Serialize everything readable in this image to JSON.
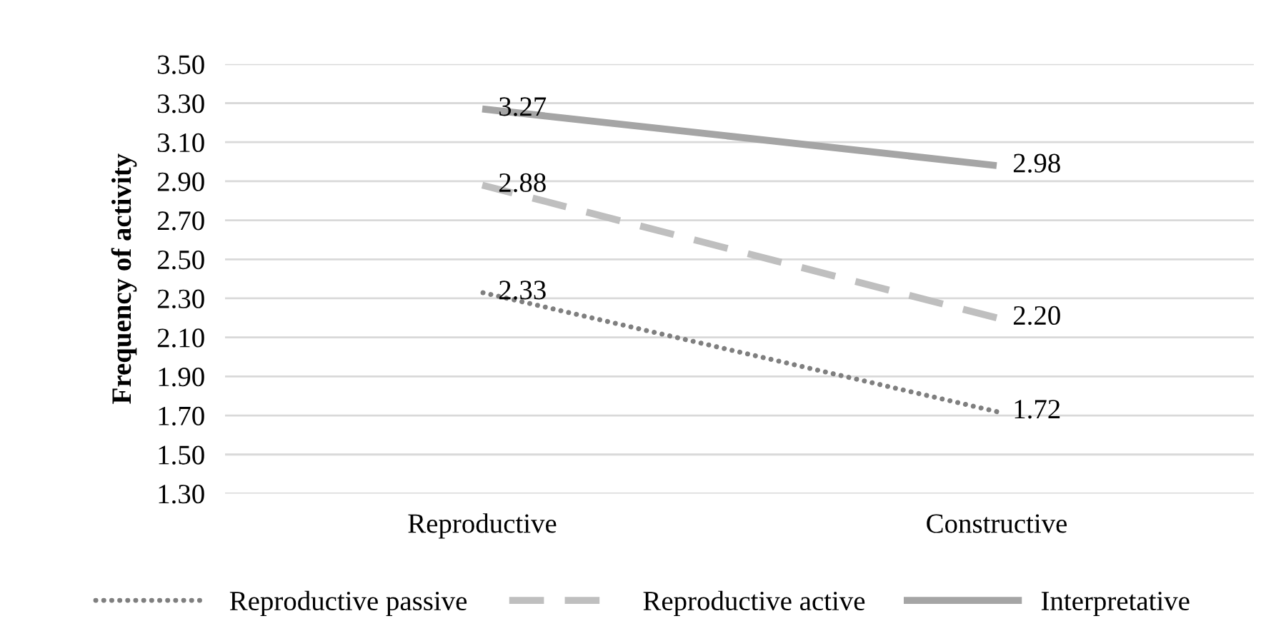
{
  "chart_data": {
    "type": "line",
    "ylabel": "Frequency of activity",
    "categories": [
      "Reproductive",
      "Constructive"
    ],
    "series": [
      {
        "name": "Reproductive passive",
        "color": "#7f7f7f",
        "line_style": "dotted",
        "values": [
          2.33,
          1.72
        ]
      },
      {
        "name": "Reproductive active",
        "color": "#bfbfbf",
        "line_style": "dashed",
        "values": [
          2.88,
          2.2
        ]
      },
      {
        "name": "Interpretative",
        "color": "#a5a5a5",
        "line_style": "solid",
        "values": [
          3.27,
          2.98
        ]
      }
    ],
    "ylim": [
      1.3,
      3.5
    ],
    "yticks": [
      {
        "value": 1.3,
        "label": "1.30"
      },
      {
        "value": 1.5,
        "label": "1.50"
      },
      {
        "value": 1.7,
        "label": "1.70"
      },
      {
        "value": 1.9,
        "label": "1.90"
      },
      {
        "value": 2.1,
        "label": "2.10"
      },
      {
        "value": 2.3,
        "label": "2.30"
      },
      {
        "value": 2.5,
        "label": "2.50"
      },
      {
        "value": 2.7,
        "label": "2.70"
      },
      {
        "value": 2.9,
        "label": "2.90"
      },
      {
        "value": 3.1,
        "label": "3.10"
      },
      {
        "value": 3.3,
        "label": "3.30"
      },
      {
        "value": 3.5,
        "label": "3.50"
      }
    ],
    "value_labels": [
      [
        "2.33",
        "1.72"
      ],
      [
        "2.88",
        "2.20"
      ],
      [
        "3.27",
        "2.98"
      ]
    ],
    "grid": "y",
    "legend": "bottom",
    "marker": "none"
  }
}
